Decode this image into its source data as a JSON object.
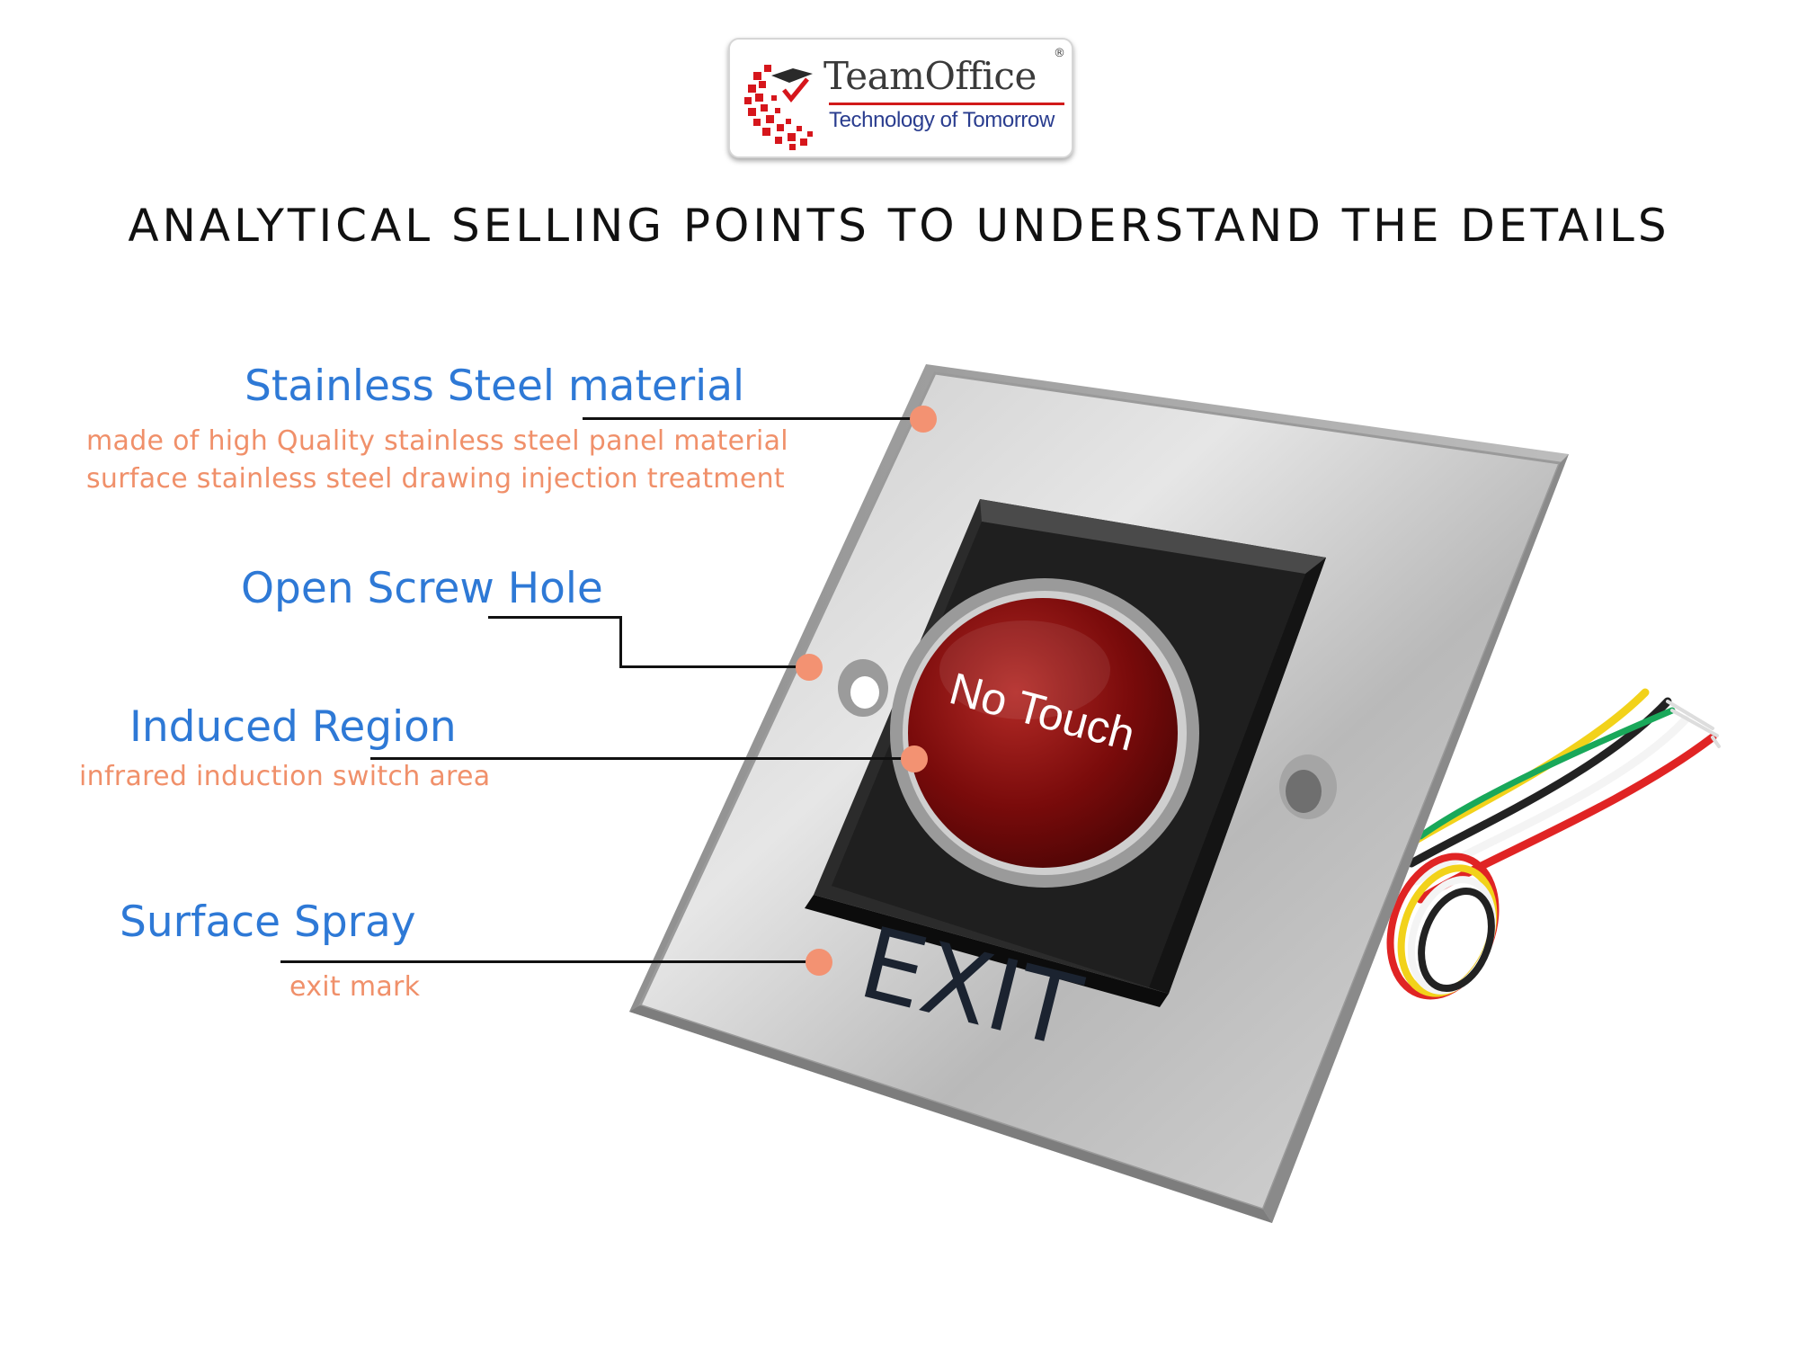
{
  "logo": {
    "name": "TeamOffice",
    "registered": "®",
    "tagline": "Technology of Tomorrow"
  },
  "page_title": "ANALYTICAL SELLING POINTS TO UNDERSTAND THE DETAILS",
  "product": {
    "button_text": "No Touch",
    "exit_text": "EXIT"
  },
  "features": [
    {
      "title": "Stainless Steel material",
      "descriptions": [
        "made of high Quality stainless steel panel material",
        "surface stainless steel drawing injection treatment"
      ]
    },
    {
      "title": "Open Screw Hole",
      "descriptions": []
    },
    {
      "title": "Induced Region",
      "descriptions": [
        "infrared induction switch area"
      ]
    },
    {
      "title": "Surface Spray",
      "descriptions": [
        "exit mark"
      ]
    }
  ],
  "colors": {
    "feature_title": "#2e79d6",
    "feature_desc": "#f0906a",
    "callout_dot": "#f39272",
    "button_red": "#8a0f0f",
    "logo_red": "#d11a1a",
    "logo_blue": "#2a3d8f"
  }
}
